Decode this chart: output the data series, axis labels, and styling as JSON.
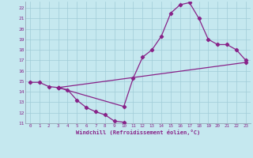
{
  "xlabel": "Windchill (Refroidissement éolien,°C)",
  "bg_color": "#c5e8ef",
  "grid_color": "#a0ccd8",
  "line_color": "#882288",
  "xlim": [
    -0.5,
    23.5
  ],
  "ylim": [
    11,
    22.6
  ],
  "xticks": [
    0,
    1,
    2,
    3,
    4,
    5,
    6,
    7,
    8,
    9,
    10,
    11,
    12,
    13,
    14,
    15,
    16,
    17,
    18,
    19,
    20,
    21,
    22,
    23
  ],
  "yticks": [
    11,
    12,
    13,
    14,
    15,
    16,
    17,
    18,
    19,
    20,
    21,
    22
  ],
  "series": [
    {
      "x": [
        0,
        1,
        2,
        3
      ],
      "y": [
        14.9,
        14.9,
        14.5,
        14.4
      ]
    },
    {
      "x": [
        3,
        4,
        5,
        6,
        7,
        8,
        9,
        10
      ],
      "y": [
        14.4,
        14.2,
        13.2,
        12.5,
        12.1,
        11.8,
        11.2,
        11.1
      ]
    },
    {
      "x": [
        3,
        10,
        11,
        12,
        13,
        14,
        15,
        16,
        17,
        18,
        19,
        20,
        21,
        22,
        23
      ],
      "y": [
        14.4,
        12.6,
        15.3,
        17.3,
        18.0,
        19.3,
        21.5,
        22.3,
        22.5,
        21.0,
        19.0,
        18.5,
        18.5,
        18.0,
        17.0
      ]
    },
    {
      "x": [
        3,
        23
      ],
      "y": [
        14.4,
        16.8
      ]
    }
  ]
}
